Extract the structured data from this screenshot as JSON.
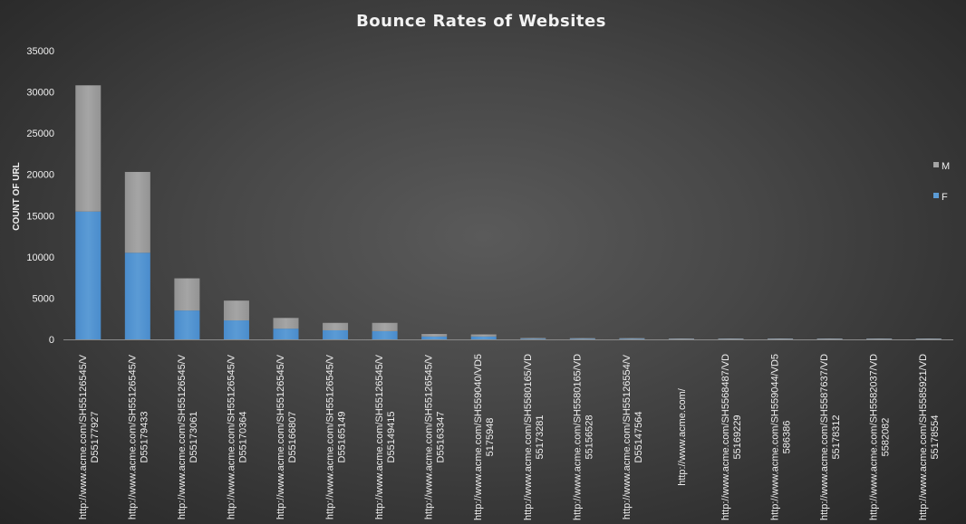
{
  "chart_data": {
    "type": "bar",
    "stacked": true,
    "title": "Bounce Rates of Websites",
    "xlabel": "",
    "ylabel": "COUNT OF URL",
    "ylim": [
      0,
      35000
    ],
    "yticks": [
      "0",
      "5000",
      "10000",
      "15000",
      "20000",
      "25000",
      "30000",
      "35000"
    ],
    "grid": false,
    "legend_position": "right",
    "categories": [
      [
        "http://www.acme.com/SH55126545/V",
        "D55177927"
      ],
      [
        "http://www.acme.com/SH55126545/V",
        "D55179433"
      ],
      [
        "http://www.acme.com/SH55126545/V",
        "D55173061"
      ],
      [
        "http://www.acme.com/SH55126545/V",
        "D55170364"
      ],
      [
        "http://www.acme.com/SH55126545/V",
        "D55166807"
      ],
      [
        "http://www.acme.com/SH55126545/V",
        "D55165149"
      ],
      [
        "http://www.acme.com/SH55126545/V",
        "D55149415"
      ],
      [
        "http://www.acme.com/SH55126545/V",
        "D55163347"
      ],
      [
        "http://www.acme.com/SH559040/VD5",
        "5175948"
      ],
      [
        "http://www.acme.com/SH5580165/VD",
        "55173281"
      ],
      [
        "http://www.acme.com/SH5580165/VD",
        "55156528"
      ],
      [
        "http://www.acme.com/SH55126554/V",
        "D55147564"
      ],
      [
        "http://www.acme.com/"
      ],
      [
        "http://www.acme.com/SH5568487/VD",
        "55169229"
      ],
      [
        "http://www.acme.com/SH559044/VD5",
        "586386"
      ],
      [
        "http://www.acme.com/SH5587637/VD",
        "55178312"
      ],
      [
        "http://www.acme.com/SH5582037/VD",
        "5582082"
      ],
      [
        "http://www.acme.com/SH5585921/VD",
        "55178554"
      ]
    ],
    "series": [
      {
        "name": "F",
        "color": "#5b9bd5",
        "values": [
          15500,
          10500,
          3500,
          2300,
          1300,
          1100,
          1000,
          350,
          350,
          80,
          60,
          60,
          15,
          20,
          20,
          15,
          15,
          15
        ]
      },
      {
        "name": "M",
        "color": "#a5a5a5",
        "values": [
          15300,
          9800,
          3900,
          2400,
          1300,
          900,
          1000,
          300,
          250,
          70,
          50,
          40,
          10,
          15,
          15,
          10,
          10,
          10
        ]
      }
    ]
  }
}
